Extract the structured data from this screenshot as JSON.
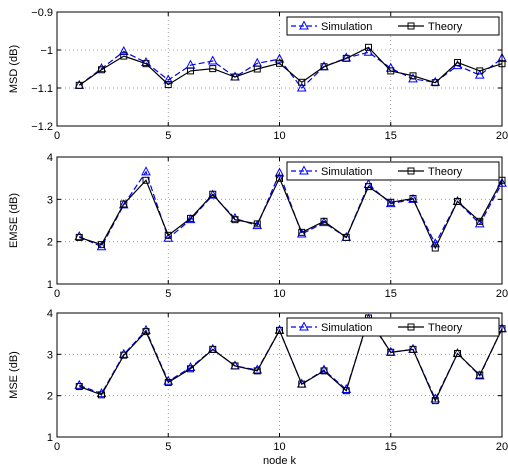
{
  "chart_data": [
    {
      "type": "line",
      "ylabel": "MSD (dB)",
      "xlabel": "",
      "xlim": [
        0,
        20
      ],
      "ylim": [
        -1.2,
        -0.9
      ],
      "xticks": [
        0,
        5,
        10,
        15,
        20
      ],
      "yticks": [
        -1.2,
        -1.1,
        -1,
        -0.9
      ],
      "ytick_labels": [
        "−1.2",
        "−1.1",
        "−1",
        "−0.9"
      ],
      "grid": true,
      "legend_position": "top-right",
      "x": [
        1,
        2,
        3,
        4,
        5,
        6,
        7,
        8,
        9,
        10,
        11,
        12,
        13,
        14,
        15,
        16,
        17,
        18,
        19,
        20
      ],
      "series": [
        {
          "name": "Simulation",
          "color": "#0000ff",
          "linestyle": "dashed",
          "marker": "triangle",
          "values": [
            -1.093,
            -1.049,
            -1.004,
            -1.033,
            -1.079,
            -1.04,
            -1.029,
            -1.071,
            -1.035,
            -1.024,
            -1.1,
            -1.044,
            -1.021,
            -1.006,
            -1.048,
            -1.076,
            -1.085,
            -1.041,
            -1.066,
            -1.022
          ]
        },
        {
          "name": "Theory",
          "color": "#000000",
          "linestyle": "solid",
          "marker": "square",
          "values": [
            -1.093,
            -1.052,
            -1.016,
            -1.036,
            -1.091,
            -1.055,
            -1.049,
            -1.071,
            -1.05,
            -1.035,
            -1.085,
            -1.044,
            -1.022,
            -0.993,
            -1.055,
            -1.068,
            -1.086,
            -1.033,
            -1.055,
            -1.036
          ]
        }
      ]
    },
    {
      "type": "line",
      "ylabel": "EMSE (dB)",
      "xlabel": "",
      "xlim": [
        0,
        20
      ],
      "ylim": [
        1,
        4
      ],
      "xticks": [
        0,
        5,
        10,
        15,
        20
      ],
      "yticks": [
        1,
        2,
        3,
        4
      ],
      "ytick_labels": [
        "1",
        "2",
        "3",
        "4"
      ],
      "grid": true,
      "legend_position": "top-right",
      "x": [
        1,
        2,
        3,
        4,
        5,
        6,
        7,
        8,
        9,
        10,
        11,
        12,
        13,
        14,
        15,
        16,
        17,
        18,
        19,
        20
      ],
      "series": [
        {
          "name": "Simulation",
          "color": "#0000ff",
          "linestyle": "dashed",
          "marker": "triangle",
          "values": [
            2.12,
            1.88,
            2.87,
            3.65,
            2.08,
            2.52,
            3.1,
            2.55,
            2.38,
            3.62,
            2.18,
            2.45,
            2.1,
            3.35,
            2.9,
            3.0,
            1.95,
            2.95,
            2.42,
            3.38
          ]
        },
        {
          "name": "Theory",
          "color": "#000000",
          "linestyle": "solid",
          "marker": "square",
          "values": [
            2.1,
            1.93,
            2.89,
            3.45,
            2.15,
            2.55,
            3.12,
            2.52,
            2.42,
            3.5,
            2.22,
            2.48,
            2.1,
            3.3,
            2.93,
            3.02,
            1.85,
            2.95,
            2.48,
            3.45
          ]
        }
      ]
    },
    {
      "type": "line",
      "ylabel": "MSE (dB)",
      "xlabel": "node k",
      "xlim": [
        0,
        20
      ],
      "ylim": [
        1,
        4
      ],
      "xticks": [
        0,
        5,
        10,
        15,
        20
      ],
      "yticks": [
        1,
        2,
        3,
        4
      ],
      "ytick_labels": [
        "1",
        "2",
        "3",
        "4"
      ],
      "grid": true,
      "legend_position": "top-right",
      "x": [
        1,
        2,
        3,
        4,
        5,
        6,
        7,
        8,
        9,
        10,
        11,
        12,
        13,
        14,
        15,
        16,
        17,
        18,
        19,
        20
      ],
      "series": [
        {
          "name": "Simulation",
          "color": "#0000ff",
          "linestyle": "dashed",
          "marker": "triangle",
          "values": [
            2.25,
            2.05,
            3.0,
            3.58,
            2.35,
            2.68,
            3.12,
            2.72,
            2.62,
            3.58,
            2.28,
            2.62,
            2.15,
            3.85,
            3.05,
            3.12,
            1.92,
            3.02,
            2.48,
            3.62
          ]
        },
        {
          "name": "Theory",
          "color": "#000000",
          "linestyle": "solid",
          "marker": "square",
          "values": [
            2.22,
            2.02,
            2.98,
            3.55,
            2.32,
            2.65,
            3.12,
            2.72,
            2.6,
            3.58,
            2.28,
            2.6,
            2.12,
            3.88,
            3.05,
            3.12,
            1.88,
            3.02,
            2.5,
            3.62
          ]
        }
      ]
    }
  ]
}
